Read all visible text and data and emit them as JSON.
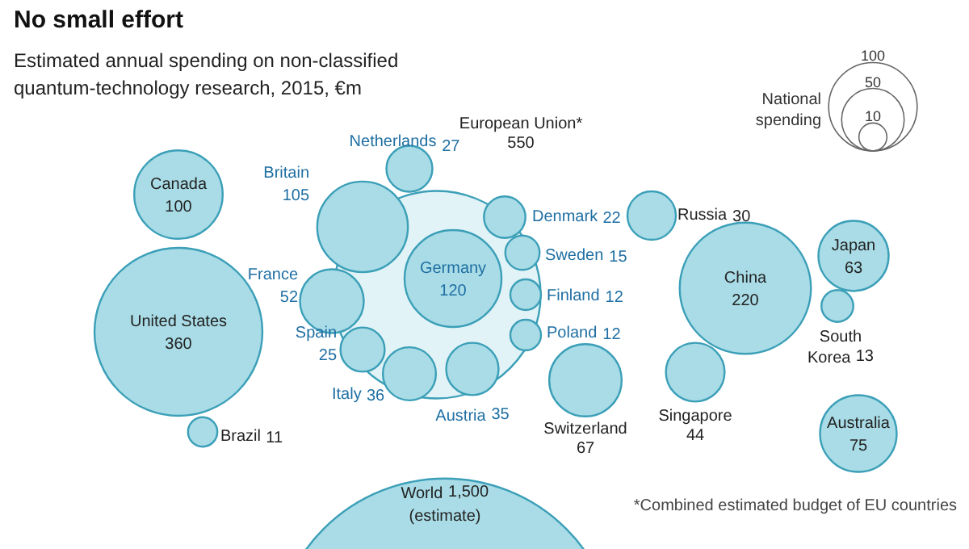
{
  "chart_data": {
    "type": "other",
    "title": "No small effort",
    "subtitle": "Estimated annual spending on non-classified quantum-technology research, 2015, €m",
    "categories": [
      "Canada",
      "United States",
      "Brazil",
      "Britain",
      "Netherlands",
      "France",
      "Spain",
      "Italy",
      "Germany",
      "Austria",
      "Denmark",
      "Sweden",
      "Finland",
      "Poland",
      "European Union*",
      "Russia",
      "Switzerland",
      "China",
      "Japan",
      "South Korea",
      "Singapore",
      "Australia",
      "World"
    ],
    "values": [
      100,
      360,
      11,
      105,
      27,
      52,
      25,
      36,
      120,
      35,
      22,
      15,
      12,
      12,
      550,
      30,
      67,
      220,
      63,
      13,
      44,
      75,
      1500
    ],
    "value_labels": [
      "100",
      "360",
      "11",
      "105",
      "27",
      "52",
      "25",
      "36",
      "120",
      "35",
      "22",
      "15",
      "12",
      "12",
      "550",
      "30",
      "67",
      "220",
      "63",
      "13",
      "44",
      "75",
      "1,500"
    ],
    "color": "#a9dce6",
    "legend_title": "National spending",
    "size_legend": [
      "100",
      "50",
      "10"
    ],
    "annotations": [
      "(estimate)",
      "*Combined estimated budget of EU countries"
    ]
  }
}
